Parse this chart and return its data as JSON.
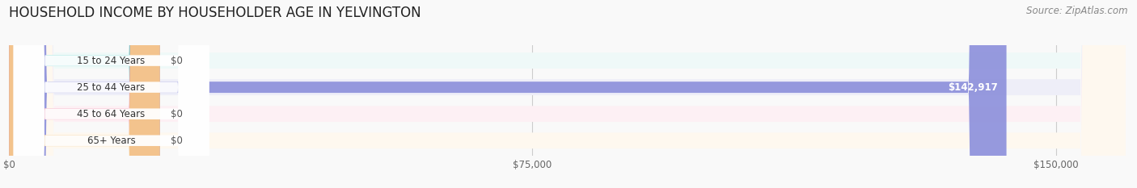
{
  "title": "HOUSEHOLD INCOME BY HOUSEHOLDER AGE IN YELVINGTON",
  "source": "Source: ZipAtlas.com",
  "categories": [
    "15 to 24 Years",
    "25 to 44 Years",
    "45 to 64 Years",
    "65+ Years"
  ],
  "values": [
    0,
    142917,
    0,
    0
  ],
  "bar_colors": [
    "#5ecfca",
    "#8b8fdb",
    "#f08fac",
    "#f5c98a"
  ],
  "bg_colors": [
    "#eff9f8",
    "#eeeef8",
    "#fdf0f4",
    "#fef8ef"
  ],
  "value_labels": [
    "$0",
    "$142,917",
    "$0",
    "$0"
  ],
  "x_max": 160000,
  "x_ticks": [
    0,
    75000,
    150000
  ],
  "x_tick_labels": [
    "$0",
    "$75,000",
    "$150,000"
  ],
  "background_color": "#f9f9f9",
  "title_fontsize": 12,
  "source_fontsize": 8.5
}
